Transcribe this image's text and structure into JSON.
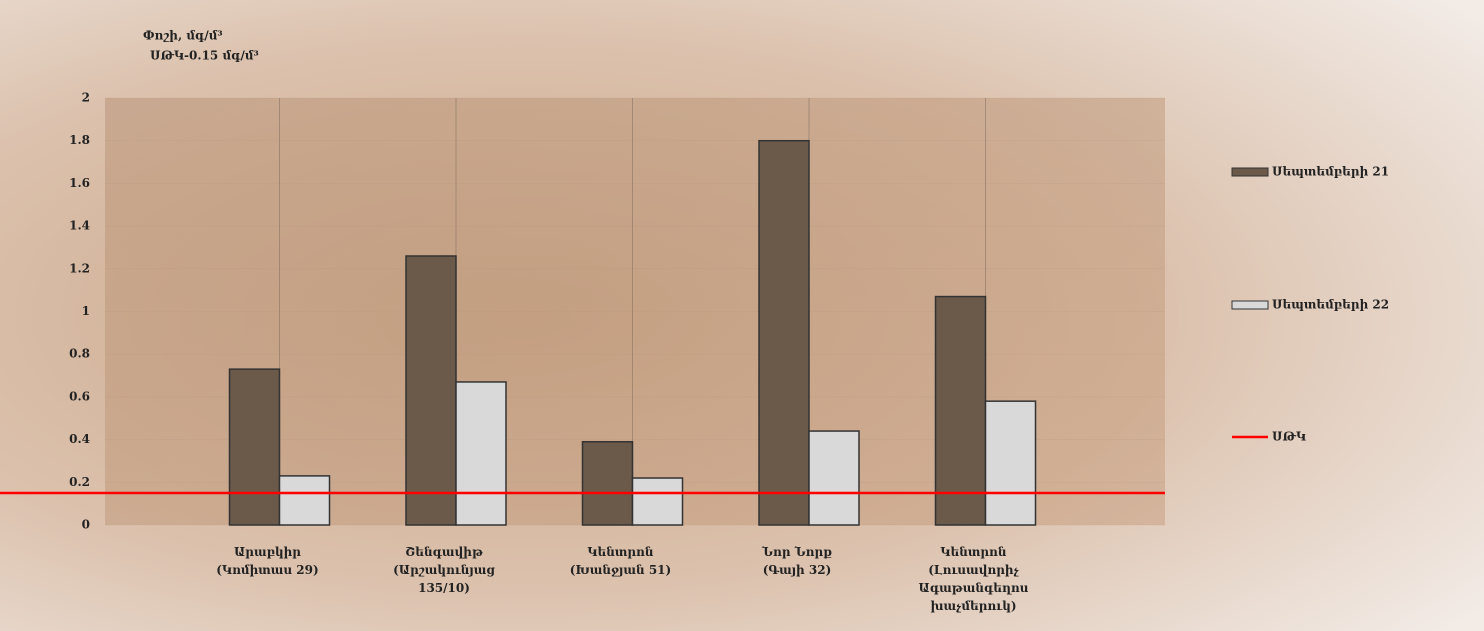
{
  "chart_data": {
    "type": "bar",
    "title": "Փոշի, մգ/մ³",
    "subtitle": "ՍԹԿ-0.15 մգ/մ³",
    "categories": [
      "Արաբկիր (Կոմիտաս 29)",
      "Շենգավիթ (Արշակունյաց 135/10)",
      "Կենտրոն (Խանջյան 51)",
      "Նոր Նորք (Գայի 32)",
      "Կենտրոն (Լուսավորիչ Ագաթանգեղոս խաչմերուկ)"
    ],
    "series": [
      {
        "name": "Սեպտեմբերի 21",
        "color": "#6b5a4a",
        "values": [
          0.73,
          1.26,
          0.39,
          1.8,
          1.07
        ]
      },
      {
        "name": "Սեպտեմբերի 22",
        "color": "#d9d9d9",
        "values": [
          0.23,
          0.67,
          0.22,
          0.44,
          0.58
        ]
      }
    ],
    "threshold": {
      "name": "ՍԹԿ",
      "value": 0.15,
      "color": "#ff0000"
    },
    "ylim": [
      0,
      2
    ],
    "yticks": [
      0,
      0.2,
      0.4,
      0.6,
      0.8,
      1,
      1.2,
      1.4,
      1.6,
      1.8,
      2
    ],
    "grid": true,
    "legend": "right"
  }
}
